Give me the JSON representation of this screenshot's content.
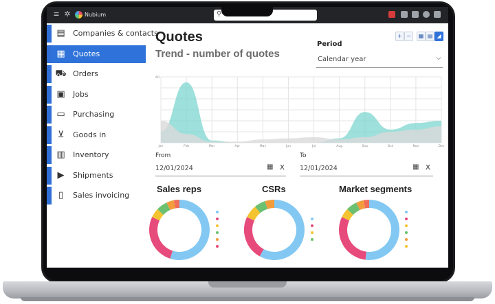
{
  "topbar": {
    "app_name": "Nubium",
    "menu_icon": "menu-icon",
    "settings_icon": "gear-icon"
  },
  "sidebar": {
    "items": [
      {
        "label": "Companies & contacts",
        "icon": "contacts-icon",
        "active": false
      },
      {
        "label": "Quotes",
        "icon": "calculator-icon",
        "active": true
      },
      {
        "label": "Orders",
        "icon": "cart-icon",
        "active": false
      },
      {
        "label": "Jobs",
        "icon": "boxes-icon",
        "active": false
      },
      {
        "label": "Purchasing",
        "icon": "payment-icon",
        "active": false
      },
      {
        "label": "Goods in",
        "icon": "trolley-icon",
        "active": false
      },
      {
        "label": "Inventory",
        "icon": "warehouse-icon",
        "active": false
      },
      {
        "label": "Shipments",
        "icon": "truck-icon",
        "active": false
      },
      {
        "label": "Sales invoicing",
        "icon": "invoice-icon",
        "active": false
      }
    ]
  },
  "main": {
    "title": "Quotes",
    "subtitle": "Trend - number of quotes",
    "period": {
      "label": "Period",
      "value": "Calendar year"
    },
    "from": {
      "label": "From",
      "value": "12/01/2024",
      "clear": "X"
    },
    "to": {
      "label": "To",
      "value": "12/01/2024",
      "clear": "X"
    }
  },
  "colors": {
    "accent": "#2f73da",
    "teal": "#7ed6cf",
    "grey_area": "#d9d9d9",
    "pink": "#e64b7b",
    "blue": "#82c8f2",
    "yellow": "#f4c430",
    "green": "#6cc070",
    "orange": "#f39c3c"
  },
  "chart_data": [
    {
      "type": "area",
      "title": "Trend - number of quotes",
      "categories": [
        "Jan",
        "Feb",
        "Mar",
        "Apr",
        "May",
        "Jun",
        "Jul",
        "Aug",
        "Sep",
        "Oct",
        "Nov",
        "Dec"
      ],
      "ylim": [
        0,
        60
      ],
      "yticks": [
        60
      ],
      "grid": true,
      "series": [
        {
          "values": [
            10,
            55,
            2,
            0,
            0,
            0,
            0,
            4,
            28,
            12,
            18,
            20
          ]
        },
        {
          "values": [
            20,
            8,
            1,
            1,
            3,
            4,
            5,
            3,
            5,
            10,
            12,
            15
          ]
        }
      ]
    },
    {
      "type": "pie",
      "title": "Sales reps",
      "values": [
        55,
        27,
        5,
        6,
        4,
        3
      ]
    },
    {
      "type": "pie",
      "title": "CSRs",
      "values": [
        58,
        24,
        7,
        6,
        5
      ]
    },
    {
      "type": "pie",
      "title": "Market segments",
      "values": [
        52,
        30,
        5,
        6,
        4,
        3
      ]
    }
  ]
}
